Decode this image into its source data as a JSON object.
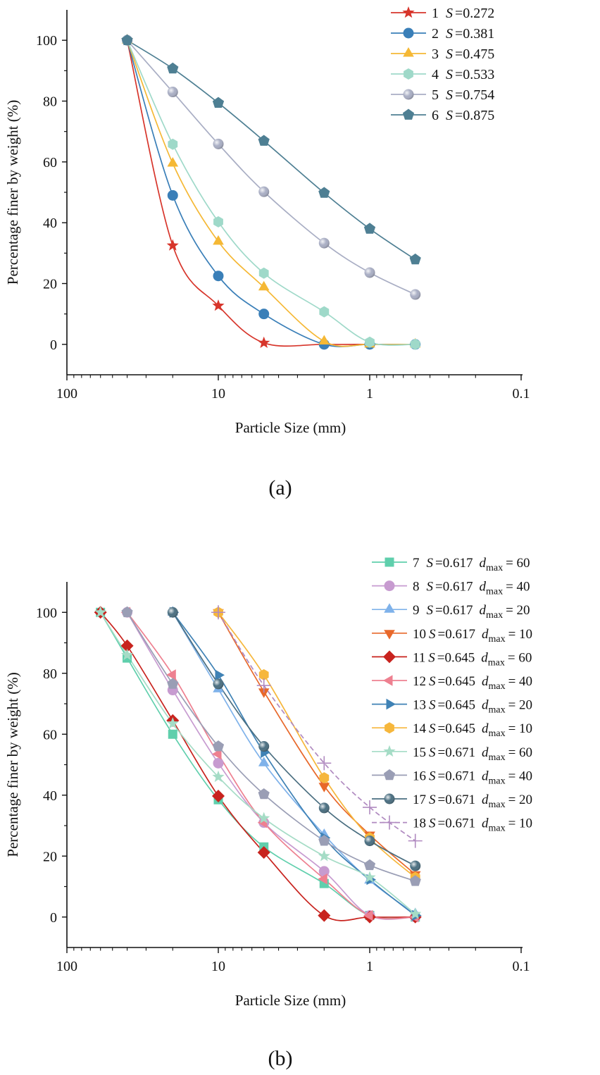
{
  "legend_format": {
    "s_symbol": "S",
    "eq": "=",
    "d_symbol": "d",
    "d_sub": "max",
    "d_eq": "= "
  },
  "chart_data": [
    {
      "type": "line",
      "panel_label": "(a)",
      "xlabel": "Particle Size (mm)",
      "ylabel": "Percentage finer by weight (%)",
      "xscale": "log-reversed",
      "xlim": [
        100,
        0.1
      ],
      "ylim": [
        -10,
        110
      ],
      "xticks": [
        "100",
        "10",
        "1",
        "0.1"
      ],
      "yticks": [
        "0",
        "20",
        "40",
        "60",
        "80",
        "100"
      ],
      "grid": false,
      "legend_placement": "top-right",
      "x": [
        40,
        20,
        10,
        5,
        2,
        1,
        0.5
      ],
      "series": [
        {
          "num": "1",
          "s": "0.272",
          "color": "#d7352b",
          "marker": "star",
          "values": [
            100,
            32.5,
            12.7,
            0.5,
            0,
            0,
            0
          ],
          "marked": [
            true,
            true,
            true,
            true,
            false,
            false,
            false
          ]
        },
        {
          "num": "2",
          "s": "0.381",
          "color": "#3a7fb8",
          "marker": "circle",
          "values": [
            100,
            49,
            22.5,
            10,
            0,
            0,
            0
          ]
        },
        {
          "num": "3",
          "s": "0.475",
          "color": "#f5b835",
          "marker": "triangle-up",
          "values": [
            100,
            59.5,
            33.8,
            18.8,
            1,
            0,
            0
          ]
        },
        {
          "num": "4",
          "s": "0.533",
          "color": "#9fd9c9",
          "marker": "hexagon",
          "values": [
            100,
            65.8,
            40.3,
            23.4,
            10.7,
            0.7,
            0
          ]
        },
        {
          "num": "5",
          "s": "0.754",
          "color": "#a9aec4",
          "marker": "sphere",
          "values": [
            100,
            83,
            65.9,
            50.2,
            33.3,
            23.6,
            16.4
          ]
        },
        {
          "num": "6",
          "s": "0.875",
          "color": "#4e7f93",
          "marker": "pentagon",
          "values": [
            100,
            90.7,
            79.4,
            66.9,
            49.8,
            38,
            27.9
          ]
        }
      ]
    },
    {
      "type": "line",
      "panel_label": "(b)",
      "xlabel": "Particle Size (mm)",
      "ylabel": "Percentage finer by weight (%)",
      "xscale": "log-reversed",
      "xlim": [
        100,
        0.1
      ],
      "ylim": [
        -10,
        110
      ],
      "xticks": [
        "100",
        "10",
        "1",
        "0.1"
      ],
      "yticks": [
        "0",
        "20",
        "40",
        "60",
        "80",
        "100"
      ],
      "grid": false,
      "legend_placement": "top-right",
      "series": [
        {
          "num": "7",
          "s": "0.617",
          "dmax": "60",
          "color": "#5fcfac",
          "marker": "square",
          "x": [
            60,
            40,
            20,
            10,
            5,
            2,
            1,
            0.5
          ],
          "values": [
            100,
            85,
            60,
            38.5,
            23,
            11,
            0.5,
            0
          ]
        },
        {
          "num": "8",
          "s": "0.617",
          "dmax": "40",
          "color": "#c79bd0",
          "marker": "circle",
          "x": [
            40,
            20,
            10,
            5,
            2,
            1,
            0.5
          ],
          "values": [
            100,
            74.5,
            50.5,
            31,
            15,
            0.5,
            0
          ]
        },
        {
          "num": "9",
          "s": "0.617",
          "dmax": "20",
          "color": "#7fb2ea",
          "marker": "triangle-up",
          "x": [
            20,
            10,
            5,
            2,
            1,
            0.5
          ],
          "values": [
            100,
            74.8,
            50.5,
            27,
            12,
            1
          ]
        },
        {
          "num": "10",
          "s": "0.617",
          "dmax": "10",
          "color": "#e8682a",
          "marker": "triangle-down",
          "x": [
            10,
            5,
            2,
            1,
            0.5
          ],
          "values": [
            100,
            74,
            43,
            27,
            14
          ]
        },
        {
          "num": "11",
          "s": "0.645",
          "dmax": "60",
          "color": "#c8231e",
          "marker": "diamond",
          "x": [
            60,
            40,
            20,
            10,
            5,
            2,
            1,
            0.5
          ],
          "values": [
            100,
            89,
            64.5,
            39.7,
            21.2,
            0.5,
            0,
            0
          ]
        },
        {
          "num": "12",
          "s": "0.645",
          "dmax": "40",
          "color": "#ee8090",
          "marker": "triangle-left",
          "x": [
            40,
            20,
            10,
            5,
            2,
            1,
            0.5
          ],
          "values": [
            100,
            79.5,
            53.5,
            31,
            12.5,
            0.5,
            0
          ]
        },
        {
          "num": "13",
          "s": "0.645",
          "dmax": "20",
          "color": "#3f82b5",
          "marker": "triangle-right",
          "x": [
            20,
            10,
            5,
            2,
            1,
            0.5
          ],
          "values": [
            100,
            79.4,
            54,
            26,
            12.3,
            0.5
          ]
        },
        {
          "num": "14",
          "s": "0.645",
          "dmax": "10",
          "color": "#f6b73c",
          "marker": "hexagon",
          "x": [
            10,
            5,
            2,
            1,
            0.5
          ],
          "values": [
            100,
            79.5,
            45.7,
            26,
            13
          ]
        },
        {
          "num": "15",
          "s": "0.671",
          "dmax": "60",
          "color": "#a5dcc6",
          "marker": "star",
          "x": [
            60,
            40,
            20,
            10,
            5,
            2,
            1,
            0.5
          ],
          "values": [
            100,
            86,
            63.5,
            46,
            32.4,
            20,
            13,
            1
          ]
        },
        {
          "num": "16",
          "s": "0.671",
          "dmax": "40",
          "color": "#9a9eb5",
          "marker": "pentagon",
          "x": [
            40,
            20,
            10,
            5,
            2,
            1,
            0.5
          ],
          "values": [
            100,
            76.5,
            56,
            40.3,
            25,
            17,
            11.8
          ]
        },
        {
          "num": "17",
          "s": "0.671",
          "dmax": "20",
          "color": "#4a6e80",
          "marker": "sphere",
          "x": [
            20,
            10,
            5,
            2,
            1,
            0.5
          ],
          "values": [
            100,
            76.5,
            56,
            35.8,
            25,
            16.8
          ]
        },
        {
          "num": "18",
          "s": "0.671",
          "dmax": "10",
          "color": "#b08ac0",
          "marker": "plus",
          "dashed": true,
          "x": [
            10,
            5,
            2,
            1,
            0.5
          ],
          "values": [
            100,
            76,
            50.5,
            36,
            25
          ]
        }
      ]
    }
  ]
}
